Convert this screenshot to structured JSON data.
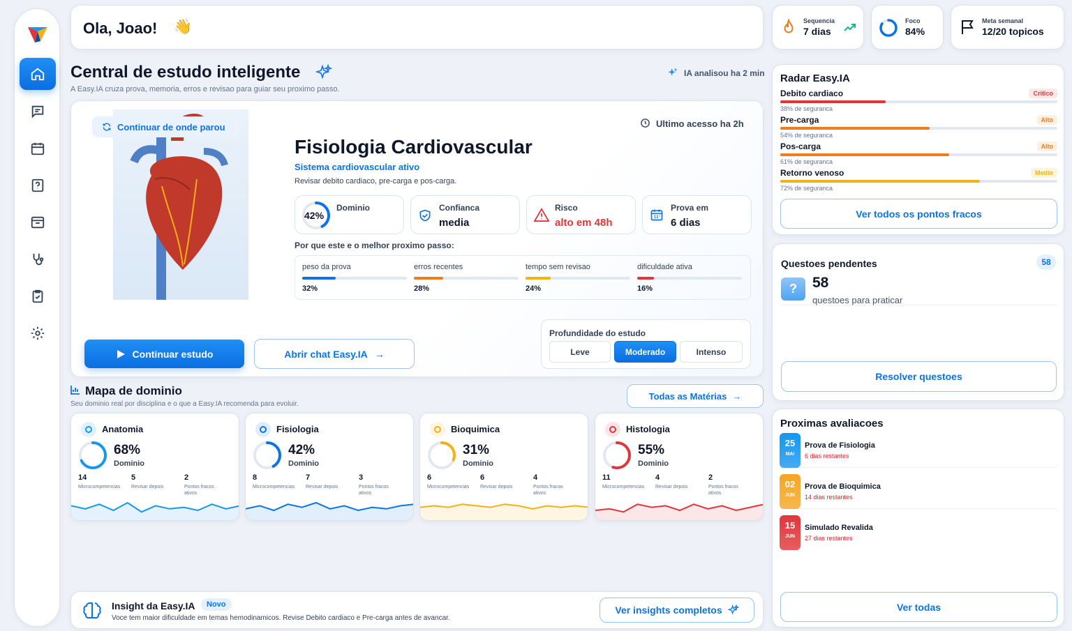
{
  "greeting": "Ola, Joao!",
  "greeting_emoji": "👋",
  "header_stats": [
    {
      "label": "Sequencia",
      "value": "7 dias",
      "icon": "flame-icon"
    },
    {
      "label": "Foco",
      "value": "84%",
      "icon": "focus-ring-icon",
      "progress": 0.84
    },
    {
      "label": "Meta semanal",
      "value": "12/20 topicos",
      "icon": "flag-icon"
    }
  ],
  "sidebar": {
    "items": [
      {
        "name": "home",
        "icon": "home-icon",
        "active": true
      },
      {
        "name": "chat",
        "icon": "chat-icon"
      },
      {
        "name": "calendar",
        "icon": "calendar-icon"
      },
      {
        "name": "questions",
        "icon": "question-icon"
      },
      {
        "name": "archive",
        "icon": "archive-icon"
      },
      {
        "name": "clinical",
        "icon": "stethoscope-icon"
      },
      {
        "name": "tasks",
        "icon": "clipboard-check-icon"
      },
      {
        "name": "settings",
        "icon": "gear-icon"
      }
    ]
  },
  "central": {
    "title": "Central de estudo inteligente",
    "subtitle": "A Easy.IA cruza prova, memoria, erros e revisao para guiar seu proximo passo.",
    "ia_status": "IA analisou ha 2 min"
  },
  "hero": {
    "continue_tag": "Continuar de onde parou",
    "last_access": "Ultimo acesso ha 2h",
    "topic": "Fisiologia Cardiovascular",
    "system": "Sistema cardiovascular ativo",
    "description": "Revisar debito cardiaco, pre-carga e pos-carga.",
    "metrics": [
      {
        "label": "Dominio",
        "value": "42%",
        "progress": 0.42
      },
      {
        "label": "Confianca",
        "value": "media"
      },
      {
        "label": "Risco",
        "value": "alto em 48h"
      },
      {
        "label": "Prova em",
        "value": "6 dias"
      }
    ],
    "why_title": "Por que este e o melhor proximo passo:",
    "factors": [
      {
        "label": "peso da prova",
        "value": "32%",
        "pct": 32,
        "color": "#0b74e5"
      },
      {
        "label": "erros recentes",
        "value": "28%",
        "pct": 28,
        "color": "#f07c1c"
      },
      {
        "label": "tempo sem revisao",
        "value": "24%",
        "pct": 24,
        "color": "#f5b014"
      },
      {
        "label": "dificuldade ativa",
        "value": "16%",
        "pct": 16,
        "color": "#e0363b"
      }
    ],
    "primary_button": "Continuar estudo",
    "chat_button": "Abrir chat Easy.IA",
    "depth_title": "Profundidade do estudo",
    "depth_options": [
      "Leve",
      "Moderado",
      "Intenso"
    ],
    "depth_selected": "Moderado"
  },
  "domain_map": {
    "title": "Mapa de dominio",
    "subtitle": "Seu dominio real por disciplina e o que a Easy.IA recomenda para evoluir.",
    "all_button": "Todas as Matérias",
    "dominio_label": "Dominio",
    "micro_label": "Microcompetencias",
    "review_label": "Revisar depois",
    "weak_label": "Pontos fracos ativos",
    "subjects": [
      {
        "name": "Anatomia",
        "pct": "68%",
        "value": 68,
        "micro": "14",
        "review": "5",
        "weak": "2",
        "color": "#1596ef",
        "icon": "skull-icon",
        "trend": [
          8,
          6,
          9,
          5,
          10,
          4,
          8,
          6,
          7,
          5,
          9,
          6,
          8
        ]
      },
      {
        "name": "Fisiologia",
        "pct": "42%",
        "value": 42,
        "micro": "8",
        "review": "7",
        "weak": "3",
        "color": "#0b74e5",
        "icon": "heart-pulse-icon",
        "trend": [
          6,
          8,
          5,
          9,
          7,
          10,
          6,
          8,
          5,
          7,
          6,
          8,
          9
        ]
      },
      {
        "name": "Bioquimica",
        "pct": "31%",
        "value": 31,
        "micro": "6",
        "review": "6",
        "weak": "4",
        "color": "#f5b014",
        "icon": "flask-icon",
        "trend": [
          7,
          8,
          7,
          9,
          8,
          7,
          9,
          8,
          6,
          8,
          7,
          8,
          7
        ]
      },
      {
        "name": "Histologia",
        "pct": "55%",
        "value": 55,
        "micro": "11",
        "review": "4",
        "weak": "2",
        "color": "#e0363b",
        "icon": "microscope-icon",
        "trend": [
          5,
          6,
          4,
          9,
          7,
          8,
          5,
          9,
          6,
          8,
          5,
          7,
          9
        ]
      }
    ]
  },
  "insight": {
    "title": "Insight da Easy.IA",
    "badge": "Novo",
    "text": "Voce tem maior dificuldade em temas hemodinamicos. Revise Debito cardiaco e Pre-carga antes de avancar.",
    "button": "Ver insights completos"
  },
  "radar": {
    "title": "Radar Easy.IA",
    "items": [
      {
        "label": "Debito cardiaco",
        "sub": "38% de seguranca",
        "pct": 38,
        "badge": "Critico",
        "color": "#e0363b",
        "badge_bg": "#fde8e8"
      },
      {
        "label": "Pre-carga",
        "sub": "54% de seguranca",
        "pct": 54,
        "badge": "Alto",
        "color": "#f07c1c",
        "badge_bg": "#fdf0e1"
      },
      {
        "label": "Pos-carga",
        "sub": "61% de seguranca",
        "pct": 61,
        "badge": "Alto",
        "color": "#f07c1c",
        "badge_bg": "#fdf0e1"
      },
      {
        "label": "Retorno venoso",
        "sub": "72% de seguranca",
        "pct": 72,
        "badge": "Medio",
        "color": "#f5b014",
        "badge_bg": "#fdf6dc"
      }
    ],
    "button": "Ver todos os pontos fracos"
  },
  "pending": {
    "title": "Questoes pendentes",
    "count_badge": "58",
    "count": "58",
    "label": "questoes para praticar",
    "button": "Resolver questoes"
  },
  "evaluations": {
    "title": "Proximas avaliacoes",
    "items": [
      {
        "day": "25",
        "month": "MAI",
        "title": "Prova de Fisiologia",
        "sub": "6 dias restantes",
        "color": "#1596ef"
      },
      {
        "day": "02",
        "month": "JUN",
        "title": "Prova de Bioquimica",
        "sub": "14 dias restantes",
        "color": "#f5a623"
      },
      {
        "day": "15",
        "month": "JUN",
        "title": "Simulado Revalida",
        "sub": "27 dias restantes",
        "color": "#e0363b"
      }
    ],
    "button": "Ver todas"
  }
}
